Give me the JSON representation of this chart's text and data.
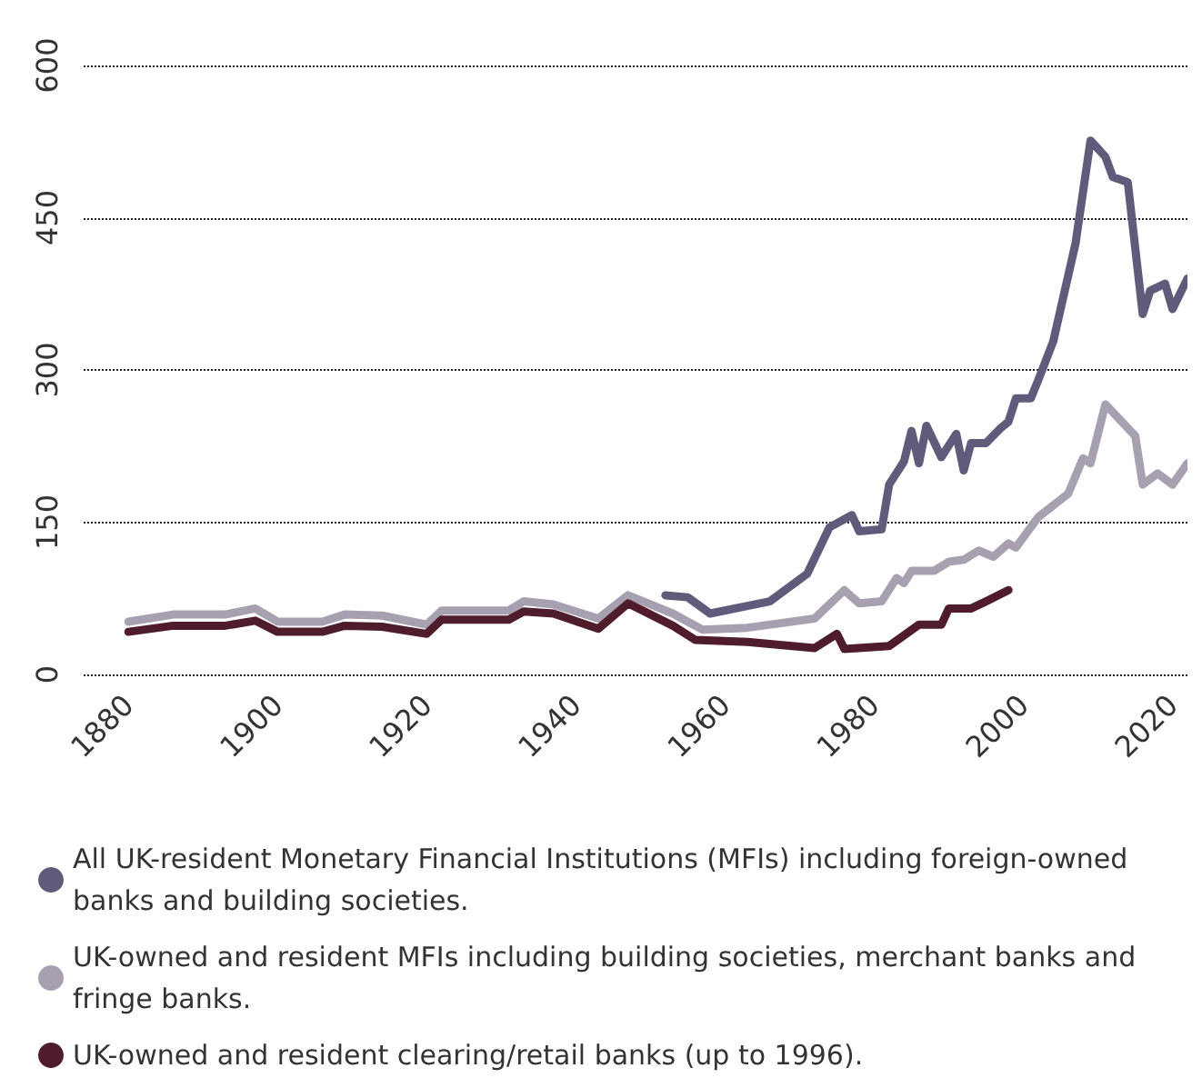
{
  "chart_data": {
    "type": "line",
    "xlim": [
      1874,
      2022
    ],
    "xticks": [
      1880,
      1900,
      1920,
      1940,
      1960,
      1980,
      2000,
      2020
    ],
    "ylim": [
      0,
      600
    ],
    "yticks": [
      0,
      150,
      300,
      450,
      600
    ],
    "grid": "y",
    "legend": "bottom",
    "marker": "none",
    "line_style": "solid",
    "series": [
      {
        "name": "All UK-resident Monetary Financial Institutions (MFIs) including foreign-owned banks and building societies.",
        "color": "#625a7a",
        "x": [
          1952,
          1955,
          1958,
          1966,
          1971,
          1974,
          1977,
          1978,
          1981,
          1982,
          1984,
          1985,
          1986,
          1987,
          1989,
          1991,
          1992,
          1993,
          1995,
          1997,
          1998,
          1999,
          2001,
          2002,
          2004,
          2007,
          2009,
          2011,
          2012,
          2014,
          2016,
          2017,
          2019,
          2020,
          2022
        ],
        "values": [
          78,
          76,
          60,
          72,
          99,
          145,
          157,
          141,
          143,
          187,
          210,
          240,
          208,
          245,
          214,
          237,
          201,
          228,
          228,
          243,
          249,
          272,
          272,
          290,
          328,
          425,
          526,
          510,
          490,
          485,
          355,
          378,
          385,
          360,
          390
        ]
      },
      {
        "name": "UK-owned and resident MFIs including building societies, merchant banks and fringe banks.",
        "color": "#a7a0b0",
        "x": [
          1880,
          1886,
          1893,
          1897,
          1900,
          1906,
          1909,
          1914,
          1920,
          1922,
          1931,
          1933,
          1937,
          1943,
          1947,
          1953,
          1957,
          1963,
          1972,
          1976,
          1978,
          1981,
          1983,
          1984,
          1985,
          1988,
          1990,
          1992,
          1994,
          1996,
          1998,
          1999,
          2002,
          2006,
          2008,
          2009,
          2011,
          2015,
          2016,
          2018,
          2020,
          2022
        ],
        "values": [
          52,
          59,
          59,
          65,
          52,
          52,
          59,
          58,
          49,
          63,
          63,
          72,
          69,
          55,
          78,
          60,
          44,
          46,
          55,
          83,
          70,
          72,
          95,
          90,
          102,
          102,
          111,
          113,
          122,
          116,
          129,
          125,
          155,
          178,
          213,
          208,
          266,
          235,
          187,
          198,
          187,
          208
        ]
      },
      {
        "name": "UK-owned and resident clearing/retail banks (up to 1996).",
        "color": "#4e1c2a",
        "x": [
          1880,
          1886,
          1893,
          1897,
          1900,
          1906,
          1909,
          1914,
          1920,
          1922,
          1931,
          1933,
          1937,
          1943,
          1947,
          1953,
          1956,
          1963,
          1972,
          1975,
          1976,
          1982,
          1986,
          1989,
          1990,
          1993,
          1995,
          1998
        ],
        "values": [
          42,
          48,
          48,
          53,
          42,
          42,
          48,
          47,
          40,
          54,
          54,
          62,
          60,
          45,
          70,
          48,
          34,
          32,
          26,
          40,
          25,
          28,
          49,
          49,
          65,
          65,
          72,
          83
        ]
      }
    ]
  }
}
